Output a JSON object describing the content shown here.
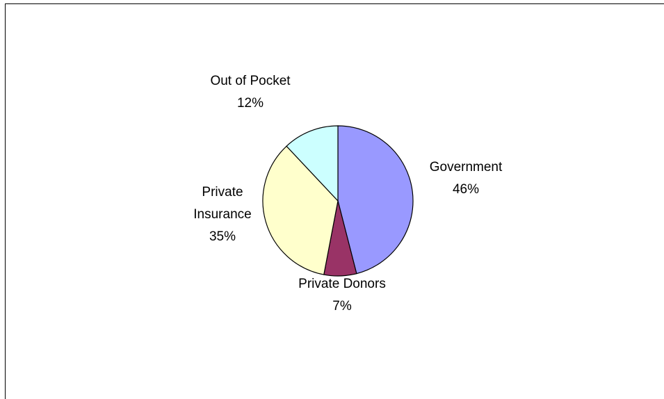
{
  "chart_data": {
    "type": "pie",
    "title": "",
    "slices": [
      {
        "label_lines": [
          "Government"
        ],
        "percent_text": "46%",
        "value": 46,
        "color": "#9999ff"
      },
      {
        "label_lines": [
          "Private Donors"
        ],
        "percent_text": "7%",
        "value": 7,
        "color": "#993366"
      },
      {
        "label_lines": [
          "Private",
          "Insurance"
        ],
        "percent_text": "35%",
        "value": 35,
        "color": "#ffffcc"
      },
      {
        "label_lines": [
          "Out of Pocket"
        ],
        "percent_text": "12%",
        "value": 12,
        "color": "#ccffff"
      }
    ],
    "start": "12 o'clock",
    "direction": "clockwise",
    "legend": "none",
    "outline_color": "#000000"
  }
}
